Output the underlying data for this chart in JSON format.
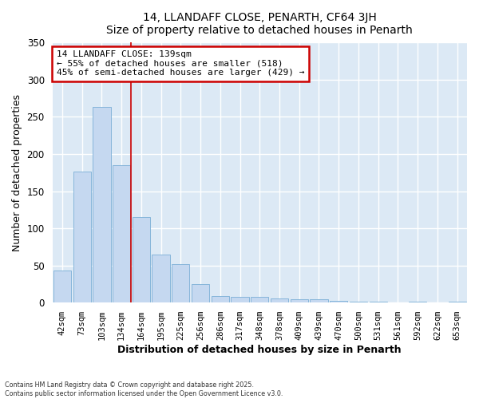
{
  "title": "14, LLANDAFF CLOSE, PENARTH, CF64 3JH",
  "subtitle": "Size of property relative to detached houses in Penarth",
  "xlabel": "Distribution of detached houses by size in Penarth",
  "ylabel": "Number of detached properties",
  "categories": [
    "42sqm",
    "73sqm",
    "103sqm",
    "134sqm",
    "164sqm",
    "195sqm",
    "225sqm",
    "256sqm",
    "286sqm",
    "317sqm",
    "348sqm",
    "378sqm",
    "409sqm",
    "439sqm",
    "470sqm",
    "500sqm",
    "531sqm",
    "561sqm",
    "592sqm",
    "622sqm",
    "653sqm"
  ],
  "values": [
    43,
    176,
    263,
    185,
    115,
    65,
    52,
    25,
    9,
    8,
    8,
    6,
    5,
    4,
    2,
    1,
    1,
    0,
    1,
    0,
    1
  ],
  "bar_color": "#c5d8f0",
  "bar_edgecolor": "#7aaed6",
  "vline_x": 3.5,
  "vline_color": "#cc0000",
  "annotation_title": "14 LLANDAFF CLOSE: 139sqm",
  "annotation_line1": "← 55% of detached houses are smaller (518)",
  "annotation_line2": "45% of semi-detached houses are larger (429) →",
  "annotation_box_color": "#cc0000",
  "annotation_bg": "#ffffff",
  "ylim": [
    0,
    350
  ],
  "yticks": [
    0,
    50,
    100,
    150,
    200,
    250,
    300,
    350
  ],
  "footer1": "Contains HM Land Registry data © Crown copyright and database right 2025.",
  "footer2": "Contains public sector information licensed under the Open Government Licence v3.0.",
  "bg_color": "#ffffff",
  "plot_bg": "#dce9f5"
}
